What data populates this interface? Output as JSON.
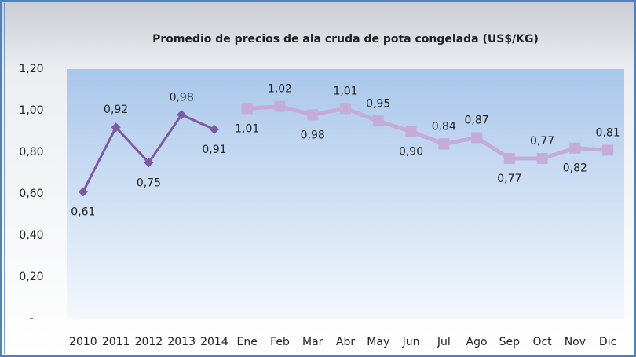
{
  "chart_data": {
    "type": "line",
    "title": "Promedio de precios de ala cruda de pota congelada (US$/KG)",
    "categories": [
      "2010",
      "2011",
      "2012",
      "2013",
      "2014",
      "Ene",
      "Feb",
      "Mar",
      "Abr",
      "May",
      "Jun",
      "Jul",
      "Ago",
      "Sep",
      "Oct",
      "Nov",
      "Dic"
    ],
    "series": [
      {
        "color": "#7b5a9f",
        "marker": "diamond",
        "values": [
          0.61,
          0.92,
          0.75,
          0.98,
          0.91,
          null,
          null,
          null,
          null,
          null,
          null,
          null,
          null,
          null,
          null,
          null,
          null
        ],
        "value_labels": [
          "0,61",
          "0,92",
          "0,75",
          "0,98",
          "0,91",
          null,
          null,
          null,
          null,
          null,
          null,
          null,
          null,
          null,
          null,
          null,
          null
        ]
      },
      {
        "color": "#c4abd8",
        "marker": "square",
        "values": [
          null,
          null,
          null,
          null,
          null,
          1.01,
          1.02,
          0.98,
          1.01,
          0.95,
          0.9,
          0.84,
          0.87,
          0.77,
          0.77,
          0.82,
          0.81
        ],
        "value_labels": [
          null,
          null,
          null,
          null,
          null,
          "1,01",
          "1,02",
          "0,98",
          "1,01",
          "0,95",
          "0,90",
          "0,84",
          "0,87",
          "0,77",
          "0,77",
          "0,82",
          "0,81"
        ]
      }
    ],
    "ylim": [
      0,
      1.2
    ],
    "yticks": [
      {
        "value": 0,
        "label": "-"
      },
      {
        "value": 0.2,
        "label": "0,20"
      },
      {
        "value": 0.4,
        "label": "0,40"
      },
      {
        "value": 0.6,
        "label": "0,60"
      },
      {
        "value": 0.8,
        "label": "0,80"
      },
      {
        "value": 1.0,
        "label": "1,00"
      },
      {
        "value": 1.2,
        "label": "1,20"
      }
    ]
  }
}
